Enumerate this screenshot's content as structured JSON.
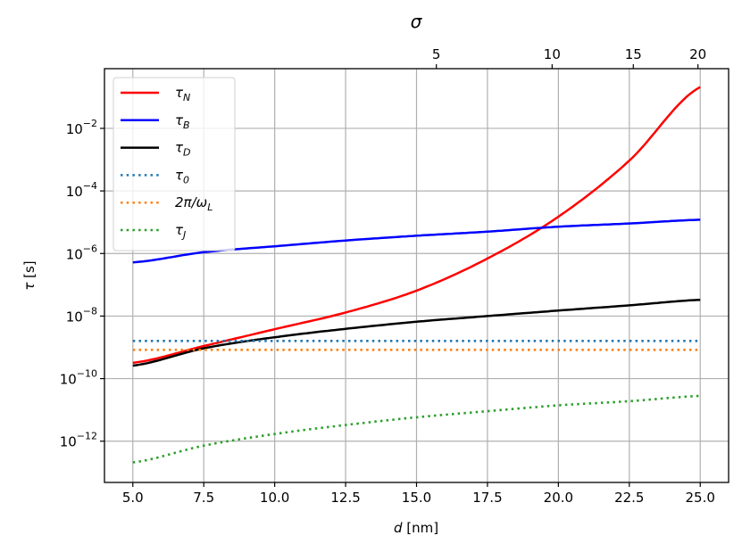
{
  "chart_data": {
    "type": "line",
    "xlabel": {
      "main": "d",
      "unit": " [nm]"
    },
    "ylabel": {
      "main": "τ",
      "unit": " [s]"
    },
    "top_xlabel": "σ",
    "xlim": [
      4.0,
      26.0
    ],
    "ylim": [
      4.8e-14,
      0.81
    ],
    "yscale": "log",
    "grid": true,
    "legend_position": "top-left",
    "x_ticks": [
      5.0,
      7.5,
      10.0,
      12.5,
      15.0,
      17.5,
      20.0,
      22.5,
      25.0
    ],
    "x_tick_labels": [
      "5.0",
      "7.5",
      "10.0",
      "12.5",
      "15.0",
      "17.5",
      "20.0",
      "22.5",
      "25.0"
    ],
    "y_ticks": [
      0.01,
      0.0001,
      1e-06,
      1e-08,
      1e-10,
      1e-12
    ],
    "y_tick_labels": [
      {
        "base": "10",
        "exp": "−2"
      },
      {
        "base": "10",
        "exp": "−4"
      },
      {
        "base": "10",
        "exp": "−6"
      },
      {
        "base": "10",
        "exp": "−8"
      },
      {
        "base": "10",
        "exp": "−10"
      },
      {
        "base": "10",
        "exp": "−12"
      }
    ],
    "top_x_ticks": [
      5,
      10,
      15,
      20
    ],
    "top_x_tick_labels": [
      "5",
      "10",
      "15",
      "20"
    ],
    "x": [
      5.0,
      7.5,
      10.0,
      12.5,
      15.0,
      17.5,
      20.0,
      22.5,
      25.0
    ],
    "series": [
      {
        "name": {
          "main": "τ",
          "sub": "N"
        },
        "color": "#ff0000",
        "style": "solid",
        "values": [
          3.2e-10,
          1.1e-09,
          3.8e-09,
          1.3e-08,
          6.5e-08,
          6.9e-07,
          1.5e-05,
          0.00093,
          0.21
        ]
      },
      {
        "name": {
          "main": "τ",
          "sub": "B"
        },
        "color": "#0000ff",
        "style": "solid",
        "values": [
          5.2e-07,
          1.1e-06,
          1.7e-06,
          2.6e-06,
          3.7e-06,
          5e-06,
          7.2e-06,
          9.1e-06,
          1.2e-05
        ]
      },
      {
        "name": {
          "main": "τ",
          "sub": "D"
        },
        "color": "#000000",
        "style": "solid",
        "values": [
          2.6e-10,
          9.3e-10,
          2.1e-09,
          3.9e-09,
          6.6e-09,
          1e-08,
          1.5e-08,
          2.2e-08,
          3.3e-08
        ]
      },
      {
        "name": {
          "main": "τ",
          "sub": "0"
        },
        "color": "#1f77b4",
        "style": "dotted",
        "values": [
          1.6e-09,
          1.6e-09,
          1.6e-09,
          1.6e-09,
          1.6e-09,
          1.6e-09,
          1.6e-09,
          1.6e-09,
          1.6e-09
        ]
      },
      {
        "name": {
          "main": "2π/ω",
          "sub": "L"
        },
        "color": "#ff7f0e",
        "style": "dotted",
        "values": [
          8.3e-10,
          8.3e-10,
          8.3e-10,
          8.3e-10,
          8.3e-10,
          8.3e-10,
          8.3e-10,
          8.3e-10,
          8.3e-10
        ]
      },
      {
        "name": {
          "main": "τ",
          "sub": "J"
        },
        "color": "#2ca02c",
        "style": "dotted",
        "values": [
          2.1e-13,
          7.2e-13,
          1.7e-12,
          3.3e-12,
          5.8e-12,
          9.1e-12,
          1.4e-11,
          1.9e-11,
          2.8e-11
        ]
      }
    ]
  }
}
